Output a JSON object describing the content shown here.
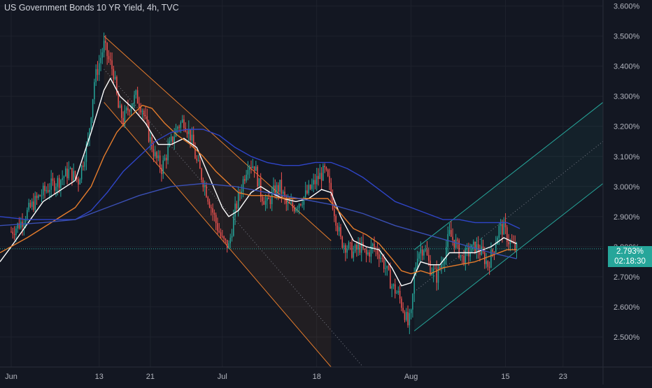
{
  "chart_data": {
    "type": "candlestick",
    "title": "US Government Bonds 10 YR Yield, 4h, TVC",
    "y_axis": {
      "ticks": [
        "3.600%",
        "3.500%",
        "3.400%",
        "3.300%",
        "3.200%",
        "3.100%",
        "3.000%",
        "2.900%",
        "2.800%",
        "2.700%",
        "2.600%",
        "2.500%"
      ],
      "tick_values": [
        3.6,
        3.5,
        3.4,
        3.3,
        3.2,
        3.1,
        3.0,
        2.9,
        2.8,
        2.7,
        2.6,
        2.5
      ],
      "range": [
        2.4,
        3.62
      ]
    },
    "x_axis": {
      "ticks": [
        "Jun",
        "13",
        "21",
        "Jul",
        "18",
        "Aug",
        "15",
        "23"
      ],
      "tick_positions": [
        0,
        55,
        87,
        132,
        191,
        250,
        309,
        345
      ],
      "range": [
        -7,
        370
      ]
    },
    "last_price": {
      "value": 2.793,
      "label": "2.793%",
      "countdown": "02:18:30"
    },
    "grid": true,
    "ohlc_anchors": [
      {
        "x": 0,
        "y": 2.85
      },
      {
        "x": 6,
        "y": 2.88
      },
      {
        "x": 12,
        "y": 2.93
      },
      {
        "x": 18,
        "y": 2.97
      },
      {
        "x": 24,
        "y": 3.0
      },
      {
        "x": 30,
        "y": 3.02
      },
      {
        "x": 36,
        "y": 3.05
      },
      {
        "x": 42,
        "y": 3.02
      },
      {
        "x": 48,
        "y": 3.15
      },
      {
        "x": 52,
        "y": 3.35
      },
      {
        "x": 56,
        "y": 3.43
      },
      {
        "x": 58,
        "y": 3.47
      },
      {
        "x": 61,
        "y": 3.42
      },
      {
        "x": 64,
        "y": 3.38
      },
      {
        "x": 67,
        "y": 3.26
      },
      {
        "x": 70,
        "y": 3.22
      },
      {
        "x": 74,
        "y": 3.27
      },
      {
        "x": 78,
        "y": 3.3
      },
      {
        "x": 82,
        "y": 3.26
      },
      {
        "x": 86,
        "y": 3.17
      },
      {
        "x": 90,
        "y": 3.1
      },
      {
        "x": 94,
        "y": 3.06
      },
      {
        "x": 98,
        "y": 3.12
      },
      {
        "x": 104,
        "y": 3.2
      },
      {
        "x": 108,
        "y": 3.22
      },
      {
        "x": 112,
        "y": 3.17
      },
      {
        "x": 116,
        "y": 3.08
      },
      {
        "x": 120,
        "y": 3.02
      },
      {
        "x": 124,
        "y": 2.95
      },
      {
        "x": 128,
        "y": 2.88
      },
      {
        "x": 132,
        "y": 2.82
      },
      {
        "x": 136,
        "y": 2.8
      },
      {
        "x": 140,
        "y": 2.92
      },
      {
        "x": 144,
        "y": 3.0
      },
      {
        "x": 148,
        "y": 3.08
      },
      {
        "x": 152,
        "y": 3.07
      },
      {
        "x": 156,
        "y": 2.98
      },
      {
        "x": 160,
        "y": 2.94
      },
      {
        "x": 164,
        "y": 2.98
      },
      {
        "x": 168,
        "y": 3.0
      },
      {
        "x": 172,
        "y": 2.94
      },
      {
        "x": 176,
        "y": 2.93
      },
      {
        "x": 180,
        "y": 2.95
      },
      {
        "x": 184,
        "y": 2.97
      },
      {
        "x": 188,
        "y": 3.0
      },
      {
        "x": 192,
        "y": 3.03
      },
      {
        "x": 196,
        "y": 3.05
      },
      {
        "x": 198,
        "y": 3.02
      },
      {
        "x": 202,
        "y": 2.92
      },
      {
        "x": 206,
        "y": 2.82
      },
      {
        "x": 210,
        "y": 2.8
      },
      {
        "x": 214,
        "y": 2.78
      },
      {
        "x": 218,
        "y": 2.8
      },
      {
        "x": 222,
        "y": 2.77
      },
      {
        "x": 226,
        "y": 2.8
      },
      {
        "x": 230,
        "y": 2.78
      },
      {
        "x": 234,
        "y": 2.73
      },
      {
        "x": 238,
        "y": 2.67
      },
      {
        "x": 242,
        "y": 2.64
      },
      {
        "x": 246,
        "y": 2.58
      },
      {
        "x": 248,
        "y": 2.54
      },
      {
        "x": 250,
        "y": 2.57
      },
      {
        "x": 252,
        "y": 2.7
      },
      {
        "x": 254,
        "y": 2.78
      },
      {
        "x": 258,
        "y": 2.8
      },
      {
        "x": 262,
        "y": 2.73
      },
      {
        "x": 266,
        "y": 2.7
      },
      {
        "x": 270,
        "y": 2.76
      },
      {
        "x": 274,
        "y": 2.84
      },
      {
        "x": 278,
        "y": 2.81
      },
      {
        "x": 282,
        "y": 2.76
      },
      {
        "x": 286,
        "y": 2.78
      },
      {
        "x": 290,
        "y": 2.8
      },
      {
        "x": 294,
        "y": 2.78
      },
      {
        "x": 298,
        "y": 2.74
      },
      {
        "x": 302,
        "y": 2.8
      },
      {
        "x": 305,
        "y": 2.86
      },
      {
        "x": 308,
        "y": 2.86
      },
      {
        "x": 311,
        "y": 2.82
      },
      {
        "x": 314,
        "y": 2.8
      },
      {
        "x": 316,
        "y": 2.79
      }
    ],
    "moving_averages": [
      {
        "color": "#ffffff",
        "points": [
          [
            -7,
            2.75
          ],
          [
            0,
            2.8
          ],
          [
            20,
            2.95
          ],
          [
            40,
            3.02
          ],
          [
            50,
            3.18
          ],
          [
            58,
            3.32
          ],
          [
            62,
            3.36
          ],
          [
            68,
            3.3
          ],
          [
            76,
            3.26
          ],
          [
            84,
            3.21
          ],
          [
            92,
            3.14
          ],
          [
            100,
            3.14
          ],
          [
            108,
            3.16
          ],
          [
            116,
            3.13
          ],
          [
            124,
            3.03
          ],
          [
            132,
            2.93
          ],
          [
            136,
            2.9
          ],
          [
            142,
            2.92
          ],
          [
            150,
            2.98
          ],
          [
            156,
            3.0
          ],
          [
            162,
            2.98
          ],
          [
            170,
            2.96
          ],
          [
            178,
            2.95
          ],
          [
            186,
            2.96
          ],
          [
            194,
            2.99
          ],
          [
            200,
            2.98
          ],
          [
            206,
            2.9
          ],
          [
            214,
            2.82
          ],
          [
            222,
            2.8
          ],
          [
            230,
            2.79
          ],
          [
            238,
            2.73
          ],
          [
            244,
            2.67
          ],
          [
            250,
            2.68
          ],
          [
            256,
            2.75
          ],
          [
            262,
            2.74
          ],
          [
            268,
            2.74
          ],
          [
            274,
            2.78
          ],
          [
            282,
            2.78
          ],
          [
            290,
            2.78
          ],
          [
            300,
            2.8
          ],
          [
            308,
            2.83
          ],
          [
            316,
            2.81
          ]
        ]
      },
      {
        "color": "#e57c2c",
        "points": [
          [
            -7,
            2.78
          ],
          [
            10,
            2.83
          ],
          [
            25,
            2.88
          ],
          [
            40,
            2.93
          ],
          [
            50,
            3.0
          ],
          [
            58,
            3.1
          ],
          [
            66,
            3.18
          ],
          [
            74,
            3.23
          ],
          [
            82,
            3.27
          ],
          [
            88,
            3.26
          ],
          [
            96,
            3.21
          ],
          [
            104,
            3.17
          ],
          [
            112,
            3.14
          ],
          [
            120,
            3.1
          ],
          [
            128,
            3.05
          ],
          [
            134,
            3.02
          ],
          [
            142,
            2.98
          ],
          [
            150,
            2.97
          ],
          [
            160,
            2.97
          ],
          [
            170,
            2.96
          ],
          [
            180,
            2.96
          ],
          [
            190,
            2.96
          ],
          [
            198,
            2.96
          ],
          [
            206,
            2.91
          ],
          [
            214,
            2.86
          ],
          [
            222,
            2.84
          ],
          [
            230,
            2.81
          ],
          [
            238,
            2.76
          ],
          [
            244,
            2.72
          ],
          [
            250,
            2.71
          ],
          [
            256,
            2.72
          ],
          [
            262,
            2.71
          ],
          [
            270,
            2.73
          ],
          [
            280,
            2.74
          ],
          [
            290,
            2.75
          ],
          [
            300,
            2.77
          ],
          [
            310,
            2.79
          ],
          [
            316,
            2.79
          ]
        ]
      },
      {
        "color": "#2f45c8",
        "points": [
          [
            -7,
            2.9
          ],
          [
            10,
            2.89
          ],
          [
            25,
            2.89
          ],
          [
            40,
            2.89
          ],
          [
            50,
            2.92
          ],
          [
            60,
            2.98
          ],
          [
            70,
            3.05
          ],
          [
            80,
            3.1
          ],
          [
            90,
            3.15
          ],
          [
            100,
            3.18
          ],
          [
            110,
            3.19
          ],
          [
            120,
            3.19
          ],
          [
            130,
            3.17
          ],
          [
            140,
            3.13
          ],
          [
            150,
            3.1
          ],
          [
            160,
            3.08
          ],
          [
            170,
            3.07
          ],
          [
            180,
            3.07
          ],
          [
            190,
            3.08
          ],
          [
            200,
            3.08
          ],
          [
            210,
            3.06
          ],
          [
            220,
            3.03
          ],
          [
            230,
            2.99
          ],
          [
            240,
            2.95
          ],
          [
            250,
            2.93
          ],
          [
            260,
            2.91
          ],
          [
            270,
            2.89
          ],
          [
            280,
            2.89
          ],
          [
            290,
            2.88
          ],
          [
            300,
            2.88
          ],
          [
            310,
            2.88
          ],
          [
            318,
            2.86
          ]
        ]
      },
      {
        "color": "#3a4fb4",
        "points": [
          [
            -7,
            2.87
          ],
          [
            20,
            2.88
          ],
          [
            40,
            2.89
          ],
          [
            60,
            2.93
          ],
          [
            80,
            2.97
          ],
          [
            100,
            3.0
          ],
          [
            120,
            3.01
          ],
          [
            140,
            3.0
          ],
          [
            160,
            2.98
          ],
          [
            180,
            2.96
          ],
          [
            200,
            2.94
          ],
          [
            220,
            2.91
          ],
          [
            240,
            2.87
          ],
          [
            260,
            2.84
          ],
          [
            280,
            2.81
          ],
          [
            300,
            2.78
          ],
          [
            316,
            2.76
          ]
        ]
      }
    ],
    "channels": [
      {
        "color": "#e57c2c",
        "upper": [
          [
            58,
            3.5
          ],
          [
            200,
            2.82
          ]
        ],
        "lower": [
          [
            58,
            3.28
          ],
          [
            200,
            2.4
          ]
        ],
        "mid": [
          [
            58,
            3.39
          ],
          [
            220,
            2.4
          ]
        ]
      },
      {
        "color": "#26a69a",
        "upper": [
          [
            252,
            2.79
          ],
          [
            370,
            3.28
          ]
        ],
        "lower": [
          [
            252,
            2.52
          ],
          [
            370,
            3.01
          ]
        ],
        "mid": [
          [
            252,
            2.65
          ],
          [
            370,
            3.15
          ]
        ]
      }
    ]
  }
}
